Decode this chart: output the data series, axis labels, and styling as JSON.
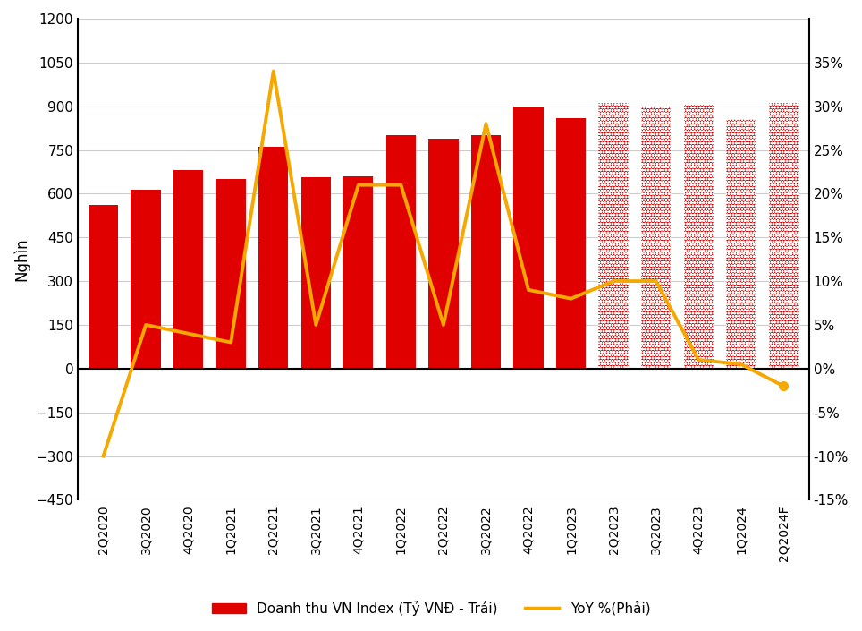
{
  "categories": [
    "2Q2020",
    "3Q2020",
    "4Q2020",
    "1Q2021",
    "2Q2021",
    "3Q2021",
    "4Q2021",
    "1Q2022",
    "2Q2022",
    "3Q2022",
    "4Q2022",
    "1Q2023",
    "2Q2023",
    "3Q2023",
    "4Q2023",
    "1Q2024",
    "2Q2024F"
  ],
  "bar_values": [
    560,
    615,
    680,
    650,
    760,
    655,
    660,
    800,
    790,
    800,
    900,
    860,
    910,
    900,
    905,
    855,
    910
  ],
  "dotted_bars": [
    false,
    false,
    false,
    false,
    false,
    false,
    false,
    false,
    false,
    false,
    false,
    false,
    true,
    true,
    true,
    true,
    true
  ],
  "yoy_values": [
    -10.0,
    5.0,
    4.0,
    3.0,
    34.0,
    5.0,
    21.0,
    21.0,
    5.0,
    28.0,
    9.0,
    8.0,
    10.0,
    10.0,
    1.0,
    0.5,
    -2.0
  ],
  "bar_color": "#e00000",
  "line_color": "#f5a800",
  "left_ylim": [
    -450,
    1200
  ],
  "left_yticks": [
    -450,
    -300,
    -150,
    0,
    150,
    300,
    450,
    600,
    750,
    900,
    1050,
    1200
  ],
  "right_ylim": [
    -15,
    40
  ],
  "right_yticks": [
    -15,
    -10,
    -5,
    0,
    5,
    10,
    15,
    20,
    25,
    30,
    35
  ],
  "right_yticklabels": [
    "-15%",
    "-10%",
    "-5%",
    "0%",
    "5%",
    "10%",
    "15%",
    "20%",
    "25%",
    "30%",
    "35%"
  ],
  "ylabel_left": "Nghìn",
  "legend_bar_label": "Doanh thu VN Index (Tỷ VNĐ - Trái)",
  "legend_line_label": "YoY %(Phải)",
  "background_color": "#ffffff",
  "grid_color": "#cccccc"
}
